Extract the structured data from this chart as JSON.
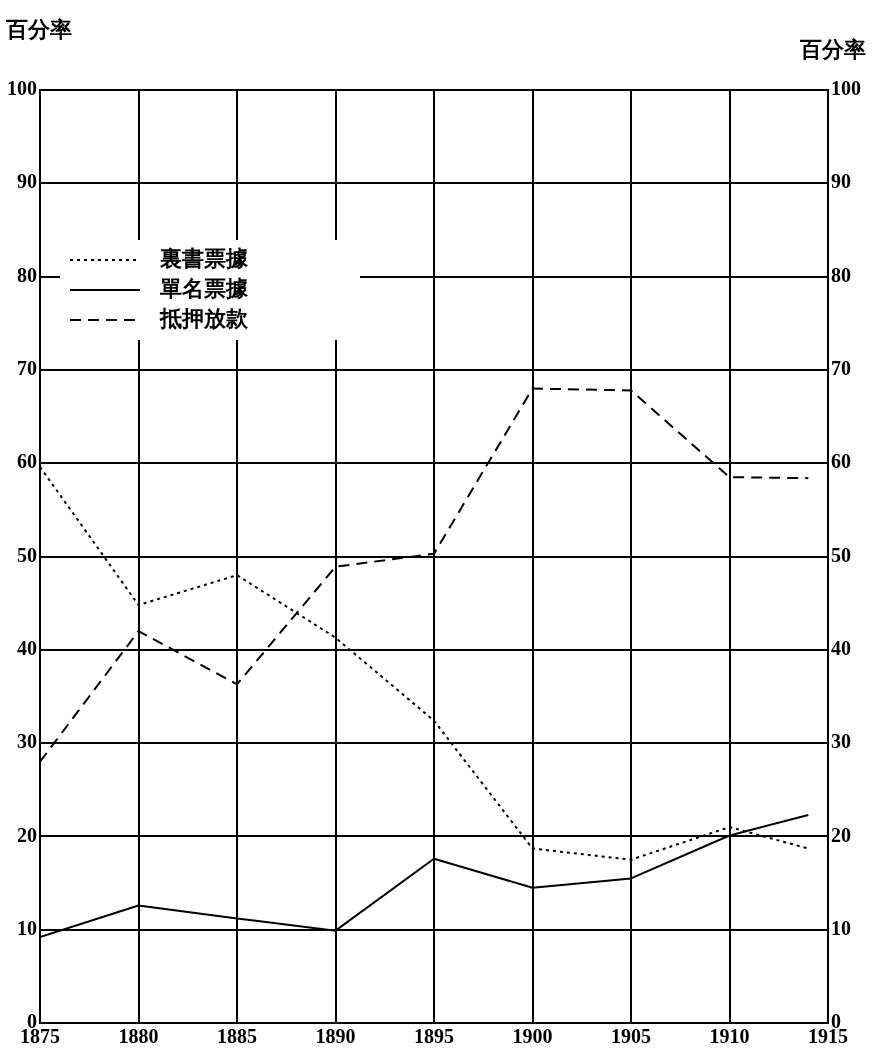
{
  "chart_data": {
    "type": "line",
    "ylabel": "百分率",
    "y2label": "百分率",
    "x": [
      1875,
      1880,
      1885,
      1890,
      1895,
      1900,
      1905,
      1910,
      1914
    ],
    "series": [
      {
        "name": "裏書票據",
        "color": "#000000",
        "line_style": "dotted",
        "values": [
          59.6,
          44.8,
          48,
          41.3,
          32.4,
          18.7,
          17.5,
          21,
          18.7
        ]
      },
      {
        "name": "單名票據",
        "color": "#000000",
        "line_style": "solid",
        "values": [
          9.2,
          12.6,
          11.2,
          9.9,
          17.6,
          14.5,
          15.5,
          20.1,
          22.3
        ]
      },
      {
        "name": "抵押放款",
        "color": "#000000",
        "line_style": "dashed",
        "values": [
          28,
          42,
          36.3,
          48.9,
          50.3,
          68,
          67.8,
          58.5,
          58.4
        ]
      }
    ],
    "xlim": [
      1875,
      1915
    ],
    "xticks": [
      1875,
      1880,
      1885,
      1890,
      1895,
      1900,
      1905,
      1910,
      1915
    ],
    "ylim": [
      0,
      100
    ],
    "yticks": [
      0,
      10,
      20,
      30,
      40,
      50,
      60,
      70,
      80,
      90,
      100
    ],
    "y2lim": [
      0,
      100
    ],
    "y2ticks": [
      0,
      10,
      20,
      30,
      40,
      50,
      60,
      70,
      80,
      90,
      100
    ],
    "grid": true,
    "legend": "top left",
    "marker": "none"
  }
}
